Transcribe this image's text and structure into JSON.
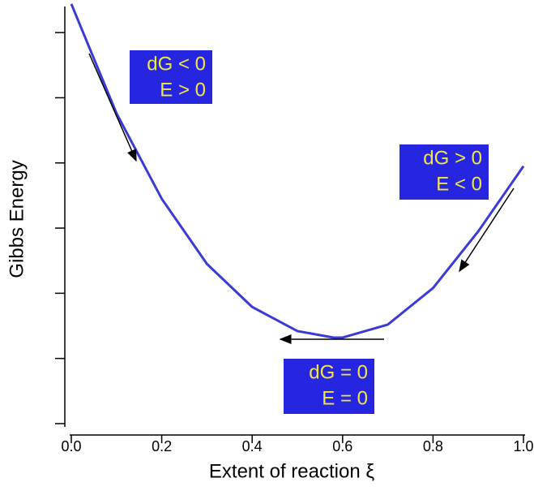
{
  "chart_data": {
    "type": "line",
    "x_label": "Extent of reaction ξ",
    "y_label": "Gibbs Energy",
    "x": [
      0,
      0.1,
      0.2,
      0.3,
      0.4,
      0.5,
      0.58,
      0.6,
      0.7,
      0.8,
      0.9,
      1.0
    ],
    "series": [
      {
        "color": "#3a3ad6",
        "values": [
          6.44,
          4.76,
          3.45,
          2.45,
          1.79,
          1.42,
          1.32,
          1.32,
          1.52,
          2.08,
          2.95,
          3.95
        ]
      }
    ],
    "xlim": [
      0,
      1
    ],
    "ylim": [
      -0.1,
      6.5
    ],
    "xticks": [
      {
        "value": 0,
        "label": "0.0"
      },
      0.2,
      0.4,
      0.6,
      0.8,
      {
        "value": 1,
        "label": "1.0"
      }
    ],
    "yticks": [
      0,
      1,
      2,
      3,
      4,
      5,
      6
    ],
    "annotations": [
      {
        "lines": [
          "dG < 0",
          "E > 0"
        ]
      },
      {
        "lines": [
          "dG > 0",
          "E < 0"
        ]
      },
      {
        "lines": [
          "dG = 0",
          "E = 0"
        ]
      }
    ],
    "annotation_box_color": "#2626e0",
    "annotation_text_color": "#f2e646"
  }
}
